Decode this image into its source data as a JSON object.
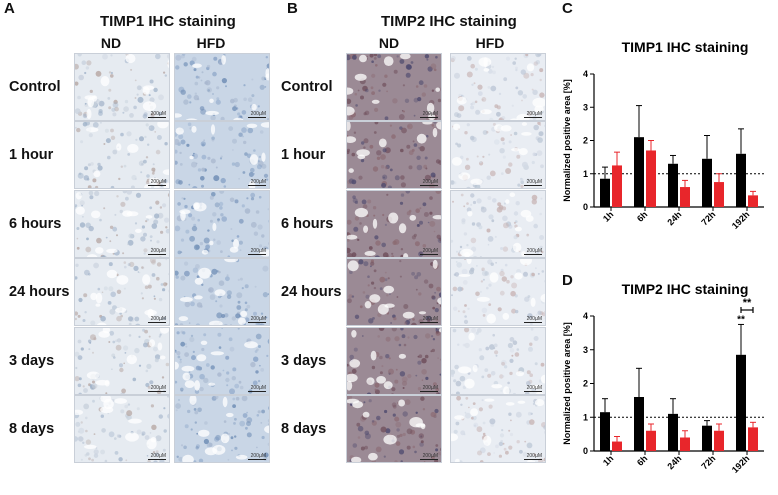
{
  "panels": {
    "A": {
      "letter": "A",
      "title": "TIMP1 IHC staining",
      "col_nd": "ND",
      "col_hfd": "HFD"
    },
    "B": {
      "letter": "B",
      "title": "TIMP2 IHC staining",
      "col_nd": "ND",
      "col_hfd": "HFD"
    },
    "C": {
      "letter": "C"
    },
    "D": {
      "letter": "D"
    }
  },
  "row_labels": [
    "Control",
    "1 hour",
    "6 hours",
    "24 hours",
    "3 days",
    "8 days"
  ],
  "scale_bar_label": "200µM",
  "chart_data": [
    {
      "type": "bar",
      "title": "TIMP1 IHC staining",
      "ylabel": "Normalized positive area [%]",
      "xlabel": "",
      "categories": [
        "1h",
        "6h",
        "24h",
        "72h",
        "192h"
      ],
      "ylim": [
        0,
        4
      ],
      "yticks": [
        0,
        1,
        2,
        3,
        4
      ],
      "reference_line": 1,
      "series": [
        {
          "color": "#000000",
          "values": [
            0.85,
            2.1,
            1.3,
            1.45,
            1.6
          ],
          "errors": [
            0.35,
            0.95,
            0.25,
            0.7,
            0.75
          ]
        },
        {
          "color": "#e8262b",
          "values": [
            1.25,
            1.7,
            0.6,
            0.75,
            0.35
          ],
          "errors": [
            0.4,
            0.3,
            0.2,
            0.25,
            0.12
          ]
        }
      ],
      "significance": []
    },
    {
      "type": "bar",
      "title": "TIMP2 IHC staining",
      "ylabel": "Normalized positive area [%]",
      "xlabel": "",
      "categories": [
        "1h",
        "6h",
        "24h",
        "72h",
        "192h"
      ],
      "ylim": [
        0,
        4
      ],
      "yticks": [
        0,
        1,
        2,
        3,
        4
      ],
      "reference_line": 1,
      "series": [
        {
          "color": "#000000",
          "values": [
            1.15,
            1.6,
            1.1,
            0.75,
            2.85
          ],
          "errors": [
            0.4,
            0.85,
            0.45,
            0.15,
            0.9
          ]
        },
        {
          "color": "#e8262b",
          "values": [
            0.28,
            0.6,
            0.4,
            0.6,
            0.7
          ],
          "errors": [
            0.15,
            0.2,
            0.2,
            0.2,
            0.15
          ]
        }
      ],
      "significance": [
        {
          "category_index": 4,
          "label": "**",
          "type": "above-bar",
          "series": 0
        },
        {
          "category_index": 4,
          "label": "**",
          "type": "bracket"
        }
      ]
    }
  ]
}
